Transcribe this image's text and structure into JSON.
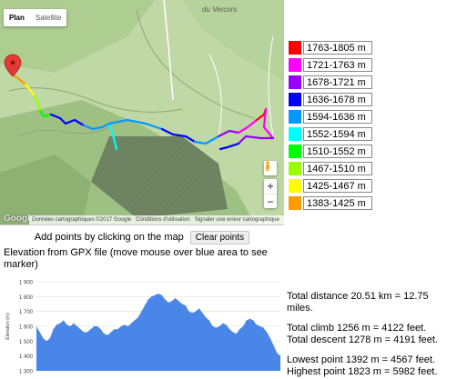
{
  "map": {
    "type_controls": {
      "plan_label": "Plan",
      "satellite_label": "Satellite"
    },
    "place_label": "du Vercors",
    "attribution": {
      "logo_text": "Google",
      "credits": "Données cartographiques ©2017 Google",
      "terms": "Conditions d'utilisation",
      "report": "Signaler une erreur cartographique"
    },
    "zoom": {
      "in": "+",
      "out": "−"
    }
  },
  "legend": {
    "items": [
      {
        "label": "1763-1805 m",
        "color": "#ff0000"
      },
      {
        "label": "1721-1763 m",
        "color": "#ff00ff"
      },
      {
        "label": "1678-1721 m",
        "color": "#9900ff"
      },
      {
        "label": "1636-1678 m",
        "color": "#0000ff"
      },
      {
        "label": "1594-1636 m",
        "color": "#0099ff"
      },
      {
        "label": "1552-1594 m",
        "color": "#00ffff"
      },
      {
        "label": "1510-1552 m",
        "color": "#00ff00"
      },
      {
        "label": "1467-1510 m",
        "color": "#99ff00"
      },
      {
        "label": "1425-1467 m",
        "color": "#ffff00"
      },
      {
        "label": "1383-1425 m",
        "color": "#ff9900"
      }
    ]
  },
  "controls": {
    "instruction": "Add points by clicking on the map",
    "clear_label": "Clear points"
  },
  "elevation": {
    "title": "Elevation from GPX file (move mouse over blue area to see marker)"
  },
  "stats": {
    "total_distance": "Total distance 20.51 km = 12.75 miles.",
    "total_climb": "Total climb 1256 m = 4122 feet.",
    "total_descent": "Total descent 1278 m = 4191 feet.",
    "lowest_point": "Lowest point 1392 m = 4567 feet.",
    "highest_point": "Highest point 1823 m = 5982 feet."
  },
  "chart_data": {
    "type": "area",
    "ylabel": "Élévation (m)",
    "yticks": [
      1300,
      1400,
      1500,
      1600,
      1700,
      1800,
      1900
    ],
    "ylim": [
      1300,
      1900
    ],
    "color": "#4a86e8",
    "values": [
      1600,
      1560,
      1520,
      1500,
      1520,
      1580,
      1610,
      1620,
      1640,
      1610,
      1600,
      1620,
      1600,
      1580,
      1560,
      1560,
      1580,
      1600,
      1600,
      1580,
      1550,
      1540,
      1560,
      1580,
      1580,
      1600,
      1610,
      1600,
      1620,
      1640,
      1660,
      1700,
      1740,
      1780,
      1800,
      1810,
      1820,
      1810,
      1780,
      1760,
      1770,
      1790,
      1770,
      1750,
      1740,
      1700,
      1690,
      1700,
      1720,
      1690,
      1660,
      1640,
      1600,
      1590,
      1600,
      1620,
      1610,
      1580,
      1560,
      1550,
      1580,
      1600,
      1640,
      1650,
      1640,
      1610,
      1600,
      1590,
      1560,
      1520,
      1470,
      1420,
      1400
    ]
  }
}
